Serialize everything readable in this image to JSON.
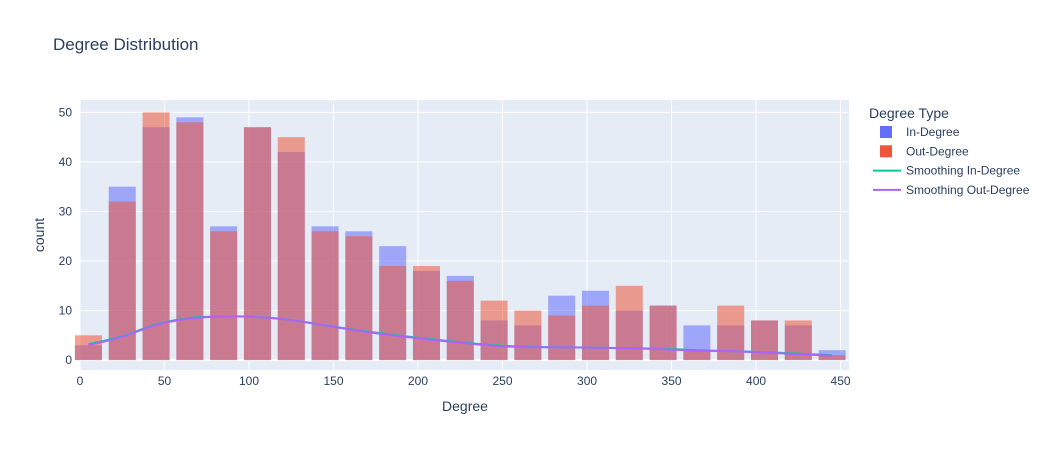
{
  "chart_data": {
    "type": "bar",
    "title": "Degree Distribution",
    "xlabel": "Degree",
    "ylabel": "count",
    "xlim": [
      0,
      455
    ],
    "ylim": [
      -2,
      52.5
    ],
    "x_ticks": [
      0,
      50,
      100,
      150,
      200,
      250,
      300,
      350,
      400,
      450
    ],
    "y_ticks": [
      0,
      10,
      20,
      30,
      40,
      50
    ],
    "grid": true,
    "legend_position": "right",
    "legend_title": "Degree Type",
    "bin_width": 20,
    "bin_centers": [
      5,
      25,
      45,
      65,
      85,
      105,
      125,
      145,
      165,
      185,
      205,
      225,
      245,
      265,
      285,
      305,
      325,
      345,
      365,
      385,
      405,
      425,
      445
    ],
    "series": [
      {
        "name": "In-Degree",
        "kind": "bar",
        "color": "#636efa",
        "values": [
          3,
          35,
          47,
          49,
          27,
          47,
          42,
          27,
          26,
          23,
          18,
          17,
          8,
          7,
          13,
          14,
          10,
          11,
          7,
          7,
          8,
          7,
          2
        ]
      },
      {
        "name": "Out-Degree",
        "kind": "bar",
        "color": "#ef553b",
        "values": [
          5,
          32,
          50,
          48,
          26,
          47,
          45,
          26,
          25,
          19,
          19,
          16,
          12,
          10,
          9,
          11,
          15,
          11,
          2,
          11,
          8,
          8,
          1
        ]
      },
      {
        "name": "Smoothing In-Degree",
        "kind": "line",
        "color": "#00cc96",
        "x": [
          5,
          25,
          45,
          65,
          85,
          105,
          125,
          145,
          165,
          185,
          205,
          225,
          245,
          265,
          285,
          305,
          325,
          345,
          365,
          385,
          405,
          425,
          445
        ],
        "values": [
          3.2,
          4.8,
          7.2,
          8.5,
          8.8,
          8.7,
          8.1,
          7.0,
          6.0,
          5.1,
          4.3,
          3.6,
          3.0,
          2.7,
          2.6,
          2.5,
          2.4,
          2.3,
          2.0,
          1.8,
          1.6,
          1.3,
          1.0
        ]
      },
      {
        "name": "Smoothing Out-Degree",
        "kind": "line",
        "color": "#ab63fa",
        "x": [
          5,
          25,
          45,
          65,
          85,
          105,
          125,
          145,
          165,
          185,
          205,
          225,
          245,
          265,
          285,
          305,
          325,
          345,
          365,
          385,
          405,
          425,
          445
        ],
        "values": [
          3.0,
          4.7,
          7.1,
          8.4,
          8.8,
          8.7,
          8.1,
          7.0,
          5.9,
          5.0,
          4.2,
          3.5,
          2.9,
          2.6,
          2.6,
          2.5,
          2.4,
          2.2,
          1.9,
          1.8,
          1.5,
          1.2,
          0.9
        ]
      }
    ]
  }
}
